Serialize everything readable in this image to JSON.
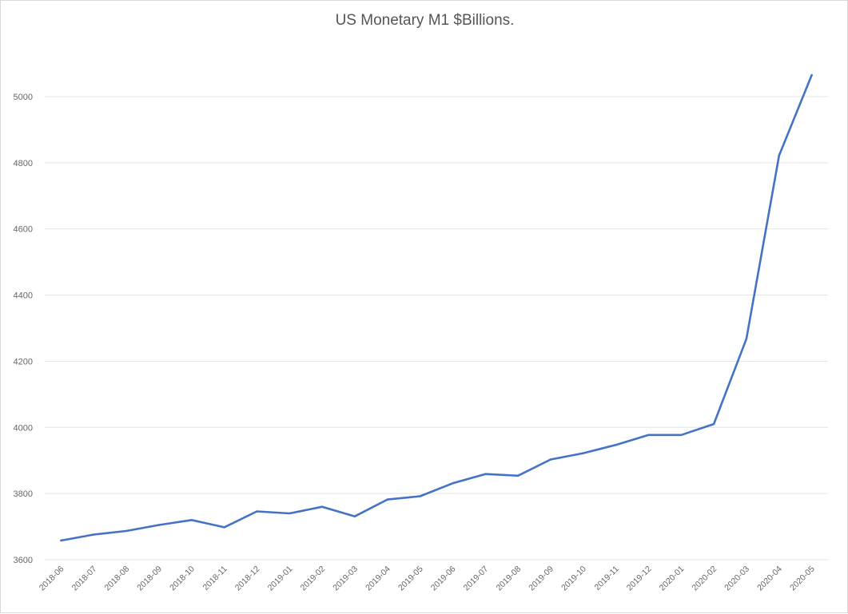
{
  "chart_data": {
    "type": "line",
    "title": "US Monetary M1 $Billions.",
    "xlabel": "",
    "ylabel": "",
    "ylim": [
      3600,
      5100
    ],
    "yticks": [
      3600,
      3800,
      4000,
      4200,
      4400,
      4600,
      4800,
      5000
    ],
    "grid": true,
    "legend": "none",
    "colors": {
      "line": "#4472c4",
      "grid": "#e3e3e3",
      "text": "#666666"
    },
    "categories": [
      "2018-06",
      "2018-07",
      "2018-08",
      "2018-09",
      "2018-10",
      "2018-11",
      "2018-12",
      "2019-01",
      "2019-02",
      "2019-03",
      "2019-04",
      "2019-05",
      "2019-06",
      "2019-07",
      "2019-08",
      "2019-09",
      "2019-10",
      "2019-11",
      "2019-12",
      "2020-01",
      "2020-02",
      "2020-03",
      "2020-04",
      "2020-05"
    ],
    "series": [
      {
        "name": "M1",
        "values": [
          3658,
          3676,
          3687,
          3705,
          3720,
          3698,
          3746,
          3740,
          3760,
          3731,
          3782,
          3792,
          3831,
          3859,
          3854,
          3903,
          3922,
          3947,
          3977,
          3977,
          4010,
          4268,
          4822,
          5065
        ]
      }
    ]
  }
}
